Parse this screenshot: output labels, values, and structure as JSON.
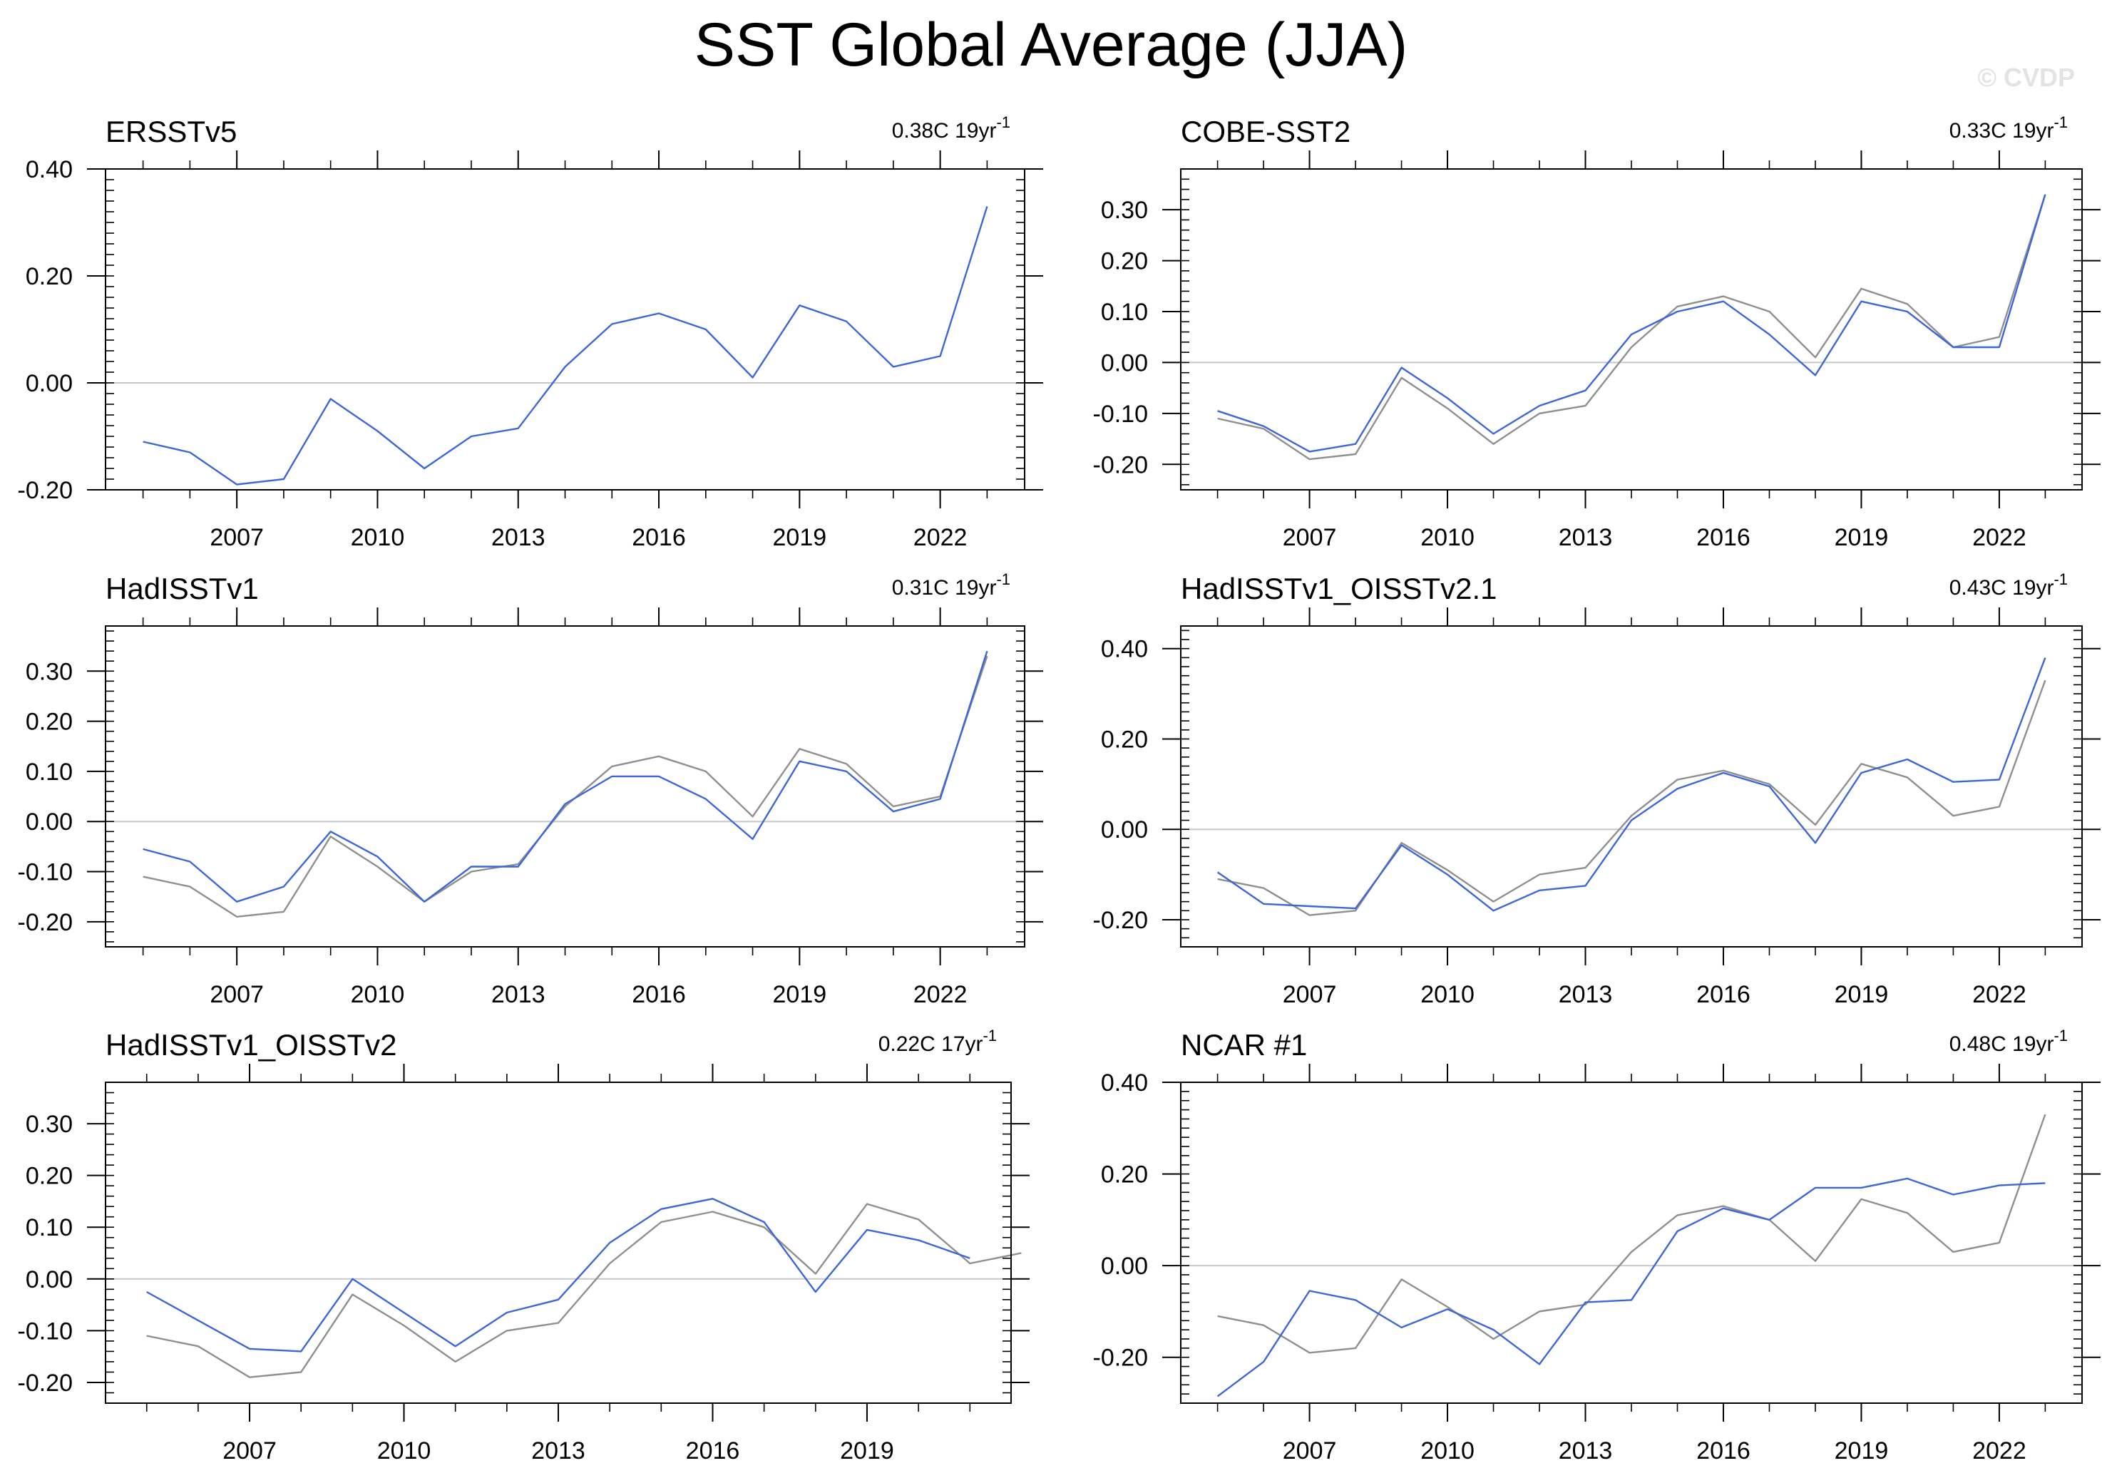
{
  "title": "SST Global Average (JJA)",
  "watermark": "© CVDP",
  "colors": {
    "series": "#3d67d6",
    "reference": "#8f8f8f",
    "zero_line": "#c8c8c8",
    "axis": "#000000"
  },
  "chart_data": [
    {
      "type": "line",
      "name": "ERSSTv5",
      "trend": {
        "value": "0.38C 19yr",
        "exponent": "-1"
      },
      "xlim": [
        2004.2,
        2023.8
      ],
      "xticks": [
        2007,
        2010,
        2013,
        2016,
        2019,
        2022
      ],
      "ylim": [
        -0.2,
        0.4
      ],
      "yticks": [
        -0.2,
        0,
        0.2,
        0.4
      ],
      "yticklabels": [
        "-0.20",
        "0.00",
        "0.20",
        "0.40"
      ],
      "x": [
        2005,
        2006,
        2007,
        2008,
        2009,
        2010,
        2011,
        2012,
        2013,
        2014,
        2015,
        2016,
        2017,
        2018,
        2019,
        2020,
        2021,
        2022,
        2023
      ],
      "series": [
        {
          "role": "series",
          "values": [
            -0.11,
            -0.13,
            -0.19,
            -0.18,
            -0.03,
            -0.09,
            -0.16,
            -0.1,
            -0.085,
            0.03,
            0.11,
            0.13,
            0.1,
            0.01,
            0.145,
            0.115,
            0.03,
            0.05,
            0.33
          ]
        }
      ]
    },
    {
      "type": "line",
      "name": "COBE-SST2",
      "trend": {
        "value": "0.33C 19yr",
        "exponent": "-1"
      },
      "xlim": [
        2004.2,
        2023.8
      ],
      "xticks": [
        2007,
        2010,
        2013,
        2016,
        2019,
        2022
      ],
      "ylim": [
        -0.25,
        0.38
      ],
      "yticks": [
        -0.2,
        -0.1,
        0,
        0.1,
        0.2,
        0.3
      ],
      "yticklabels": [
        "-0.20",
        "-0.10",
        "0.00",
        "0.10",
        "0.20",
        "0.30"
      ],
      "x": [
        2005,
        2006,
        2007,
        2008,
        2009,
        2010,
        2011,
        2012,
        2013,
        2014,
        2015,
        2016,
        2017,
        2018,
        2019,
        2020,
        2021,
        2022,
        2023
      ],
      "series": [
        {
          "role": "reference",
          "values": [
            -0.11,
            -0.13,
            -0.19,
            -0.18,
            -0.03,
            -0.09,
            -0.16,
            -0.1,
            -0.085,
            0.03,
            0.11,
            0.13,
            0.1,
            0.01,
            0.145,
            0.115,
            0.03,
            0.05,
            0.33
          ]
        },
        {
          "role": "series",
          "values": [
            -0.095,
            -0.125,
            -0.175,
            -0.16,
            -0.01,
            -0.07,
            -0.14,
            -0.085,
            -0.055,
            0.055,
            0.1,
            0.12,
            0.055,
            -0.025,
            0.12,
            0.1,
            0.03,
            0.03,
            0.33
          ]
        }
      ]
    },
    {
      "type": "line",
      "name": "HadISSTv1",
      "trend": {
        "value": "0.31C 19yr",
        "exponent": "-1"
      },
      "xlim": [
        2004.2,
        2023.8
      ],
      "xticks": [
        2007,
        2010,
        2013,
        2016,
        2019,
        2022
      ],
      "ylim": [
        -0.25,
        0.39
      ],
      "yticks": [
        -0.2,
        -0.1,
        0,
        0.1,
        0.2,
        0.3
      ],
      "yticklabels": [
        "-0.20",
        "-0.10",
        "0.00",
        "0.10",
        "0.20",
        "0.30"
      ],
      "x": [
        2005,
        2006,
        2007,
        2008,
        2009,
        2010,
        2011,
        2012,
        2013,
        2014,
        2015,
        2016,
        2017,
        2018,
        2019,
        2020,
        2021,
        2022,
        2023
      ],
      "series": [
        {
          "role": "reference",
          "values": [
            -0.11,
            -0.13,
            -0.19,
            -0.18,
            -0.03,
            -0.09,
            -0.16,
            -0.1,
            -0.085,
            0.03,
            0.11,
            0.13,
            0.1,
            0.01,
            0.145,
            0.115,
            0.03,
            0.05,
            0.33
          ]
        },
        {
          "role": "series",
          "values": [
            -0.055,
            -0.08,
            -0.16,
            -0.13,
            -0.02,
            -0.07,
            -0.16,
            -0.09,
            -0.09,
            0.035,
            0.09,
            0.09,
            0.045,
            -0.035,
            0.12,
            0.1,
            0.02,
            0.045,
            0.34
          ]
        }
      ]
    },
    {
      "type": "line",
      "name": "HadISSTv1_OISSTv2.1",
      "trend": {
        "value": "0.43C 19yr",
        "exponent": "-1"
      },
      "xlim": [
        2004.2,
        2023.8
      ],
      "xticks": [
        2007,
        2010,
        2013,
        2016,
        2019,
        2022
      ],
      "ylim": [
        -0.26,
        0.45
      ],
      "yticks": [
        -0.2,
        0,
        0.2,
        0.4
      ],
      "yticklabels": [
        "-0.20",
        "0.00",
        "0.20",
        "0.40"
      ],
      "x": [
        2005,
        2006,
        2007,
        2008,
        2009,
        2010,
        2011,
        2012,
        2013,
        2014,
        2015,
        2016,
        2017,
        2018,
        2019,
        2020,
        2021,
        2022,
        2023
      ],
      "series": [
        {
          "role": "reference",
          "values": [
            -0.11,
            -0.13,
            -0.19,
            -0.18,
            -0.03,
            -0.09,
            -0.16,
            -0.1,
            -0.085,
            0.03,
            0.11,
            0.13,
            0.1,
            0.01,
            0.145,
            0.115,
            0.03,
            0.05,
            0.33
          ]
        },
        {
          "role": "series",
          "values": [
            -0.095,
            -0.165,
            -0.17,
            -0.175,
            -0.035,
            -0.1,
            -0.18,
            -0.135,
            -0.125,
            0.02,
            0.09,
            0.125,
            0.095,
            -0.03,
            0.125,
            0.155,
            0.105,
            0.11,
            0.38
          ]
        }
      ]
    },
    {
      "type": "line",
      "name": "HadISSTv1_OISSTv2",
      "trend": {
        "value": "0.22C 17yr",
        "exponent": "-1"
      },
      "xlim": [
        2004.2,
        2021.8
      ],
      "xticks": [
        2007,
        2010,
        2013,
        2016,
        2019
      ],
      "ylim": [
        -0.24,
        0.38
      ],
      "yticks": [
        -0.2,
        -0.1,
        0,
        0.1,
        0.2,
        0.3
      ],
      "yticklabels": [
        "-0.20",
        "-0.10",
        "0.00",
        "0.10",
        "0.20",
        "0.30"
      ],
      "x": [
        2005,
        2006,
        2007,
        2008,
        2009,
        2010,
        2011,
        2012,
        2013,
        2014,
        2015,
        2016,
        2017,
        2018,
        2019,
        2020,
        2021
      ],
      "reference_extra": {
        "x": [
          2022
        ],
        "values": [
          0.05
        ]
      },
      "series": [
        {
          "role": "reference",
          "values": [
            -0.11,
            -0.13,
            -0.19,
            -0.18,
            -0.03,
            -0.09,
            -0.16,
            -0.1,
            -0.085,
            0.03,
            0.11,
            0.13,
            0.1,
            0.01,
            0.145,
            0.115,
            0.03
          ]
        },
        {
          "role": "series",
          "values": [
            -0.025,
            -0.08,
            -0.135,
            -0.14,
            0.0,
            -0.065,
            -0.13,
            -0.065,
            -0.04,
            0.07,
            0.135,
            0.155,
            0.11,
            -0.025,
            0.095,
            0.075,
            0.04
          ]
        }
      ]
    },
    {
      "type": "line",
      "name": "NCAR #1",
      "trend": {
        "value": "0.48C 19yr",
        "exponent": "-1"
      },
      "xlim": [
        2004.2,
        2023.8
      ],
      "xticks": [
        2007,
        2010,
        2013,
        2016,
        2019,
        2022
      ],
      "ylim": [
        -0.3,
        0.4
      ],
      "yticks": [
        -0.2,
        0,
        0.2,
        0.4
      ],
      "yticklabels": [
        "-0.20",
        "0.00",
        "0.20",
        "0.40"
      ],
      "x": [
        2005,
        2006,
        2007,
        2008,
        2009,
        2010,
        2011,
        2012,
        2013,
        2014,
        2015,
        2016,
        2017,
        2018,
        2019,
        2020,
        2021,
        2022,
        2023
      ],
      "series": [
        {
          "role": "reference",
          "values": [
            -0.11,
            -0.13,
            -0.19,
            -0.18,
            -0.03,
            -0.09,
            -0.16,
            -0.1,
            -0.085,
            0.03,
            0.11,
            0.13,
            0.1,
            0.01,
            0.145,
            0.115,
            0.03,
            0.05,
            0.33
          ]
        },
        {
          "role": "series",
          "values": [
            -0.285,
            -0.21,
            -0.055,
            -0.075,
            -0.135,
            -0.095,
            -0.14,
            -0.215,
            -0.08,
            -0.075,
            0.075,
            0.125,
            0.1,
            0.17,
            0.17,
            0.19,
            0.155,
            0.175,
            0.18
          ]
        }
      ]
    }
  ]
}
